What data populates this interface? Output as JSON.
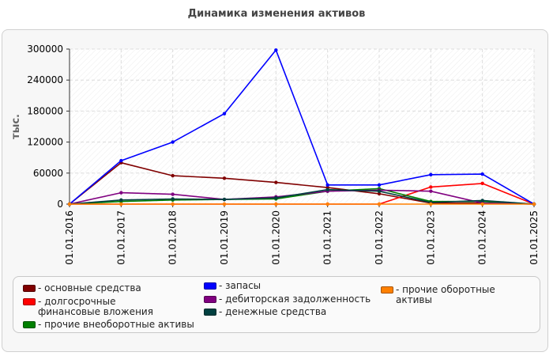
{
  "chart_data": {
    "type": "line",
    "title": "Динамика изменения активов",
    "ylabel": "тыс.",
    "xlabel": "",
    "x": [
      "01.01.2016",
      "01.01.2017",
      "01.01.2018",
      "01.01.2019",
      "01.01.2020",
      "01.01.2021",
      "01.01.2022",
      "01.01.2023",
      "01.01.2024",
      "01.01.2025"
    ],
    "ylim": [
      0,
      300000
    ],
    "yticks": [
      "0",
      "60000",
      "120000",
      "180000",
      "240000",
      "300000"
    ],
    "grid": true,
    "legend_position": "bottom",
    "series": [
      {
        "name": "основные средства",
        "color": "#800000",
        "values": [
          0,
          80000,
          55000,
          50000,
          42000,
          32000,
          20000,
          2000,
          2000,
          0
        ]
      },
      {
        "name": "долгосрочные финансовые вложения",
        "color": "#ff0000",
        "values": [
          0,
          0,
          0,
          0,
          0,
          0,
          0,
          33000,
          40000,
          0
        ]
      },
      {
        "name": "прочие внеоборотные активы",
        "color": "#008000",
        "values": [
          0,
          5000,
          8000,
          9000,
          10000,
          25000,
          30000,
          5000,
          5000,
          0
        ]
      },
      {
        "name": "запасы",
        "color": "#0000ff",
        "values": [
          0,
          84000,
          120000,
          175000,
          298000,
          37000,
          37000,
          57000,
          58000,
          0
        ]
      },
      {
        "name": "дебиторская задолженность",
        "color": "#800080",
        "values": [
          0,
          22000,
          19000,
          9000,
          14000,
          25000,
          27000,
          25000,
          2000,
          0
        ]
      },
      {
        "name": "денежные средства",
        "color": "#004040",
        "values": [
          0,
          8000,
          10000,
          9000,
          12000,
          28000,
          25000,
          3000,
          7000,
          0
        ]
      },
      {
        "name": "прочие оборотные активы",
        "color": "#ff8000",
        "values": [
          0,
          0,
          0,
          0,
          0,
          0,
          0,
          0,
          0,
          0
        ]
      }
    ]
  }
}
